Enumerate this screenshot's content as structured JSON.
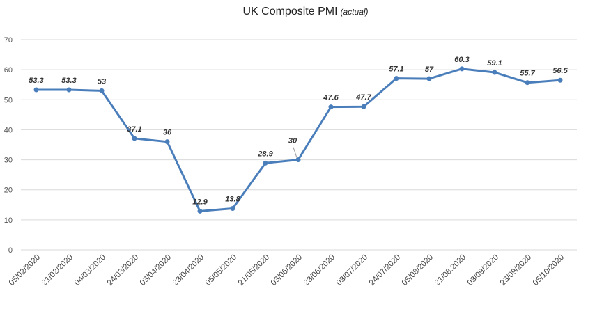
{
  "chart_data": {
    "type": "line",
    "title": "UK Composite PMI",
    "subtitle": "(actual)",
    "xlabel": "",
    "ylabel": "",
    "ylim": [
      0,
      70
    ],
    "yticks": [
      0,
      10,
      20,
      30,
      40,
      50,
      60,
      70
    ],
    "grid": true,
    "legend": "none",
    "line_color": "#4a7ebb",
    "categories": [
      "05/02/2020",
      "21/02/2020",
      "04/03/2020",
      "24/03/2020",
      "03/04/2020",
      "23/04/2020",
      "05/05/2020",
      "21/05/2020",
      "03/06/2020",
      "23/06/2020",
      "03/07/2020",
      "24/07/2020",
      "05/08/2020",
      "21/08.2020",
      "03/09/2020",
      "23/09/2020",
      "05/10/2020"
    ],
    "values": [
      53.3,
      53.3,
      53,
      37.1,
      36,
      12.9,
      13.8,
      28.9,
      30,
      47.6,
      47.7,
      57.1,
      57,
      60.3,
      59.1,
      55.7,
      56.5
    ],
    "data_labels": [
      "53.3",
      "53.3",
      "53",
      "37.1",
      "36",
      "12.9",
      "13.8",
      "28.9",
      "30",
      "47.6",
      "47.7",
      "57.1",
      "57",
      "60.3",
      "59.1",
      "55.7",
      "56.5"
    ]
  }
}
